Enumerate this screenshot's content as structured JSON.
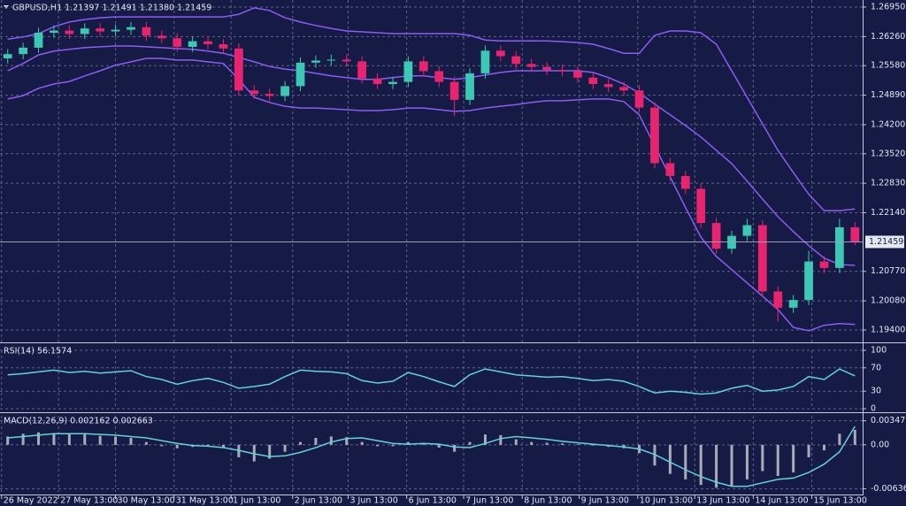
{
  "chart_data": [
    {
      "type": "candlestick",
      "title": "GBPUSD,H1  1.21397 1.21491 1.21380 1.21459",
      "up_color": "#3cc8b4",
      "down_color": "#e8246e",
      "grid": true,
      "xlim": [
        0,
        56
      ],
      "ylim": [
        1.1911,
        1.27115
      ],
      "yticks": [
        {
          "value": 1.2695,
          "label": "1.26950"
        },
        {
          "value": 1.2626,
          "label": "1.26260"
        },
        {
          "value": 1.2558,
          "label": "1.25580"
        },
        {
          "value": 1.2489,
          "label": "1.24890"
        },
        {
          "value": 1.242,
          "label": "1.24200"
        },
        {
          "value": 1.2352,
          "label": "1.23520"
        },
        {
          "value": 1.2283,
          "label": "1.22830"
        },
        {
          "value": 1.2214,
          "label": "1.22140"
        },
        {
          "value": 1.2077,
          "label": "1.20770"
        },
        {
          "value": 1.2008,
          "label": "1.20080"
        },
        {
          "value": 1.194,
          "label": "1.19400"
        }
      ],
      "price_line": {
        "value": 1.21459,
        "label": "1.21459"
      },
      "open": [
        1.2575,
        1.2585,
        1.26,
        1.2635,
        1.264,
        1.2632,
        1.2645,
        1.2638,
        1.2642,
        1.2648,
        1.2628,
        1.2622,
        1.2602,
        1.2615,
        1.2608,
        1.2598,
        1.25,
        1.2492,
        1.2487,
        1.251,
        1.2565,
        1.257,
        1.2572,
        1.2568,
        1.2528,
        1.2515,
        1.252,
        1.2568,
        1.2545,
        1.252,
        1.2478,
        1.254,
        1.2593,
        1.258,
        1.2562,
        1.2555,
        1.2548,
        1.2545,
        1.253,
        1.2515,
        1.2508,
        1.25,
        1.246,
        1.233,
        1.23,
        1.227,
        1.219,
        1.213,
        1.216,
        1.2185,
        1.203,
        1.1992,
        1.201,
        1.21,
        1.2085,
        1.218
      ],
      "high": [
        1.2597,
        1.2612,
        1.2647,
        1.2652,
        1.2652,
        1.2657,
        1.2657,
        1.2654,
        1.266,
        1.266,
        1.264,
        1.2634,
        1.2627,
        1.2627,
        1.262,
        1.261,
        1.2512,
        1.2504,
        1.2522,
        1.2577,
        1.2582,
        1.2584,
        1.2584,
        1.258,
        1.254,
        1.2532,
        1.258,
        1.258,
        1.2557,
        1.2532,
        1.2552,
        1.2605,
        1.2605,
        1.2592,
        1.2574,
        1.2567,
        1.256,
        1.2557,
        1.2542,
        1.2527,
        1.252,
        1.2512,
        1.2472,
        1.2342,
        1.2312,
        1.2282,
        1.2202,
        1.2172,
        1.22,
        1.2197,
        1.2042,
        1.2022,
        1.2125,
        1.2112,
        1.22,
        1.2192
      ],
      "low": [
        1.2563,
        1.2573,
        1.2588,
        1.2623,
        1.262,
        1.262,
        1.2626,
        1.2626,
        1.263,
        1.2616,
        1.261,
        1.259,
        1.259,
        1.2596,
        1.2586,
        1.2488,
        1.248,
        1.2475,
        1.2475,
        1.2498,
        1.2553,
        1.2558,
        1.2556,
        1.2516,
        1.2503,
        1.2503,
        1.2508,
        1.2533,
        1.2508,
        1.244,
        1.2466,
        1.2528,
        1.2568,
        1.255,
        1.2543,
        1.2536,
        1.2533,
        1.2518,
        1.2503,
        1.2496,
        1.2488,
        1.2448,
        1.2318,
        1.2288,
        1.2258,
        1.2178,
        1.2118,
        1.2118,
        1.2148,
        1.2018,
        1.196,
        1.198,
        1.1998,
        1.2073,
        1.2073,
        1.2138
      ],
      "close": [
        1.2585,
        1.26,
        1.2635,
        1.264,
        1.2632,
        1.2645,
        1.2638,
        1.2642,
        1.2648,
        1.2628,
        1.2622,
        1.2602,
        1.2615,
        1.2608,
        1.2598,
        1.25,
        1.2492,
        1.2487,
        1.251,
        1.2565,
        1.257,
        1.2572,
        1.2568,
        1.2528,
        1.2515,
        1.252,
        1.2568,
        1.2545,
        1.252,
        1.2478,
        1.254,
        1.2593,
        1.258,
        1.2562,
        1.2555,
        1.2548,
        1.2545,
        1.253,
        1.2515,
        1.2508,
        1.25,
        1.246,
        1.233,
        1.23,
        1.227,
        1.219,
        1.213,
        1.216,
        1.2185,
        1.203,
        1.1992,
        1.201,
        1.21,
        1.2085,
        1.218,
        1.21459
      ],
      "series": [
        {
          "color": "#8c5cf5",
          "style": "line",
          "values": [
            1.262,
            1.2625,
            1.2633,
            1.2649,
            1.266,
            1.2666,
            1.267,
            1.2672,
            1.2672,
            1.2672,
            1.2672,
            1.2672,
            1.2672,
            1.2672,
            1.2672,
            1.2678,
            1.2693,
            1.2687,
            1.267,
            1.266,
            1.2652,
            1.2645,
            1.2639,
            1.2637,
            1.2635,
            1.2633,
            1.2633,
            1.2633,
            1.2633,
            1.2633,
            1.2629,
            1.2618,
            1.2616,
            1.2616,
            1.2616,
            1.2616,
            1.2614,
            1.2612,
            1.2608,
            1.2598,
            1.2587,
            1.2587,
            1.2629,
            1.2639,
            1.2639,
            1.2635,
            1.2608,
            1.2546,
            1.2484,
            1.2422,
            1.236,
            1.2308,
            1.2257,
            1.2219,
            1.2219,
            1.2223
          ]
        },
        {
          "color": "#8c5cf5",
          "style": "line",
          "values": [
            1.2546,
            1.2563,
            1.2583,
            1.2592,
            1.2596,
            1.26,
            1.2602,
            1.2604,
            1.2604,
            1.2602,
            1.26,
            1.2598,
            1.2596,
            1.2592,
            1.2587,
            1.2577,
            1.2567,
            1.2556,
            1.255,
            1.2546,
            1.254,
            1.2534,
            1.253,
            1.2526,
            1.2526,
            1.253,
            1.2534,
            1.2534,
            1.253,
            1.2526,
            1.253,
            1.2536,
            1.2542,
            1.2546,
            1.2546,
            1.2546,
            1.2546,
            1.2546,
            1.2542,
            1.253,
            1.2515,
            1.2494,
            1.2468,
            1.2443,
            1.2418,
            1.2391,
            1.236,
            1.2329,
            1.2288,
            1.2246,
            1.2205,
            1.217,
            1.2137,
            1.2108,
            1.2093,
            1.2091
          ]
        },
        {
          "color": "#8c5cf5",
          "style": "line",
          "values": [
            1.248,
            1.2488,
            1.2505,
            1.2515,
            1.2521,
            1.2534,
            1.2546,
            1.2559,
            1.2567,
            1.2575,
            1.2575,
            1.2571,
            1.2571,
            1.2567,
            1.2563,
            1.2526,
            1.2484,
            1.2472,
            1.2463,
            1.2459,
            1.2459,
            1.2457,
            1.2455,
            1.2453,
            1.2453,
            1.2455,
            1.2459,
            1.2459,
            1.2455,
            1.2451,
            1.2453,
            1.2459,
            1.2463,
            1.2467,
            1.2472,
            1.2476,
            1.2476,
            1.2478,
            1.248,
            1.248,
            1.2474,
            1.2443,
            1.237,
            1.2298,
            1.2226,
            1.2157,
            1.2112,
            1.2081,
            1.205,
            1.2019,
            1.1988,
            1.1946,
            1.1938,
            1.1951,
            1.1955,
            1.1953
          ]
        }
      ]
    },
    {
      "type": "line",
      "title": "RSI(14) 56.1574",
      "grid": true,
      "xlim": [
        0,
        56
      ],
      "ylim": [
        0,
        100
      ],
      "yticks": [
        100,
        70,
        30,
        0
      ],
      "series": [
        {
          "color": "#62d2d8",
          "style": "line",
          "values": [
            58,
            60,
            63,
            66,
            62,
            64,
            61,
            63,
            65,
            55,
            50,
            42,
            48,
            52,
            45,
            35,
            38,
            42,
            55,
            66,
            64,
            63,
            60,
            48,
            44,
            47,
            62,
            55,
            46,
            38,
            58,
            68,
            63,
            58,
            56,
            54,
            55,
            52,
            48,
            50,
            47,
            38,
            27,
            30,
            28,
            25,
            27,
            35,
            40,
            30,
            32,
            38,
            55,
            50,
            68,
            56.1574
          ]
        }
      ]
    },
    {
      "type": "bar",
      "title": "MACD(12,26,9) 0.002162 0.002663",
      "grid": true,
      "xlim": [
        0,
        56
      ],
      "ylim": [
        -0.0068,
        0.0042
      ],
      "yticks": [
        0.003477,
        {
          "value": 0,
          "label": "0.00"
        },
        -0.006361
      ],
      "xticks": [
        {
          "value": 0.1,
          "label": "26 May 2022"
        },
        {
          "value": 3.8,
          "label": "27 May 13:00"
        },
        {
          "value": 7.5,
          "label": "30 May 13:00"
        },
        {
          "value": 11.3,
          "label": "31 May 13:00"
        },
        {
          "value": 15.0,
          "label": "1 Jun 13:00"
        },
        {
          "value": 19.0,
          "label": "2 Jun 13:00"
        },
        {
          "value": 22.6,
          "label": "3 Jun 13:00"
        },
        {
          "value": 26.4,
          "label": "6 Jun 13:00"
        },
        {
          "value": 30.1,
          "label": "7 Jun 13:00"
        },
        {
          "value": 33.9,
          "label": "8 Jun 13:00"
        },
        {
          "value": 37.6,
          "label": "9 Jun 13:00"
        },
        {
          "value": 41.4,
          "label": "10 Jun 13:00"
        },
        {
          "value": 45.1,
          "label": "13 Jun 13:00"
        },
        {
          "value": 48.9,
          "label": "14 Jun 13:00"
        },
        {
          "value": 52.7,
          "label": "15 Jun 13:00"
        }
      ],
      "series": [
        {
          "color": "#a9abb8",
          "style": "bar",
          "values": [
            0.0012,
            0.0016,
            0.0018,
            0.0017,
            0.0016,
            0.0015,
            0.0013,
            0.0012,
            0.001,
            0.0004,
            -0.0002,
            -0.0005,
            -0.0003,
            -0.0002,
            -0.0004,
            -0.0018,
            -0.0024,
            -0.002,
            -0.001,
            0.0004,
            0.001,
            0.0012,
            0.0011,
            0.0004,
            -0.0002,
            -0.0002,
            0.0004,
            0.0002,
            -0.0004,
            -0.001,
            0.0004,
            0.0015,
            0.0014,
            0.0008,
            0.0004,
            0.0003,
            0.0002,
            0.0001,
            -0.0001,
            -0.0003,
            -0.0005,
            -0.0012,
            -0.003,
            -0.0042,
            -0.005,
            -0.0058,
            -0.0062,
            -0.006,
            -0.005,
            -0.0038,
            -0.0045,
            -0.004,
            -0.0018,
            -0.0008,
            0.0016,
            0.002162
          ]
        },
        {
          "color": "#62d2d8",
          "style": "line",
          "values": [
            0.001,
            0.0012,
            0.0014,
            0.0016,
            0.0016,
            0.0016,
            0.0015,
            0.0014,
            0.0012,
            0.001,
            0.0006,
            0.0002,
            -0.0001,
            -0.0002,
            -0.0004,
            -0.0008,
            -0.0013,
            -0.0017,
            -0.0016,
            -0.0011,
            -0.0004,
            0.0004,
            0.0009,
            0.001,
            0.0006,
            0.0002,
            0.0001,
            0.0002,
            0.0001,
            -0.0003,
            -0.0004,
            0.0002,
            0.0009,
            0.0012,
            0.001,
            0.0008,
            0.0005,
            0.0003,
            0.0001,
            -0.0001,
            -0.0003,
            -0.0006,
            -0.0014,
            -0.0025,
            -0.0036,
            -0.0046,
            -0.0054,
            -0.006,
            -0.006,
            -0.0055,
            -0.005,
            -0.0048,
            -0.004,
            -0.0028,
            -0.001,
            0.002663
          ]
        }
      ]
    }
  ]
}
